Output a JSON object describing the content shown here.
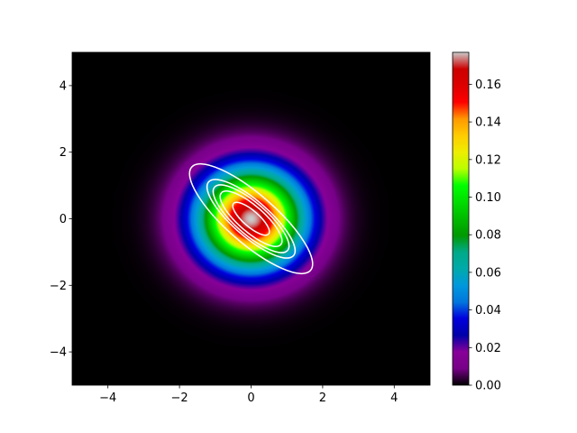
{
  "chart_data": {
    "type": "heatmap",
    "colormap": "nipy_spectral",
    "field": {
      "kind": "gaussian-2d",
      "center": [
        0,
        0
      ],
      "sigma": 1.0,
      "peak": 0.177
    },
    "xlim": [
      -5,
      5
    ],
    "ylim": [
      -5,
      5
    ],
    "x_ticks": [
      "−4",
      "−2",
      "0",
      "2",
      "4"
    ],
    "x_tick_values": [
      -4,
      -2,
      0,
      2,
      4
    ],
    "y_ticks": [
      "−4",
      "−2",
      "0",
      "2",
      "4"
    ],
    "y_tick_values": [
      -4,
      -2,
      0,
      2,
      4
    ],
    "colorbar": {
      "range": [
        0,
        0.177
      ],
      "ticks": [
        "0.00",
        "0.02",
        "0.04",
        "0.06",
        "0.08",
        "0.10",
        "0.12",
        "0.14",
        "0.16"
      ],
      "tick_values": [
        0,
        0.02,
        0.04,
        0.06,
        0.08,
        0.1,
        0.12,
        0.14,
        0.16
      ]
    },
    "contours": {
      "color": "#ffffff",
      "center": [
        0,
        0
      ],
      "angle_deg": -41,
      "ellipses": [
        {
          "semi_major": 0.65,
          "semi_minor": 0.22
        },
        {
          "semi_major": 1.1,
          "semi_minor": 0.36
        },
        {
          "semi_major": 1.35,
          "semi_minor": 0.44
        },
        {
          "semi_major": 1.57,
          "semi_minor": 0.5
        },
        {
          "semi_major": 2.2,
          "semi_minor": 0.68
        }
      ]
    }
  }
}
